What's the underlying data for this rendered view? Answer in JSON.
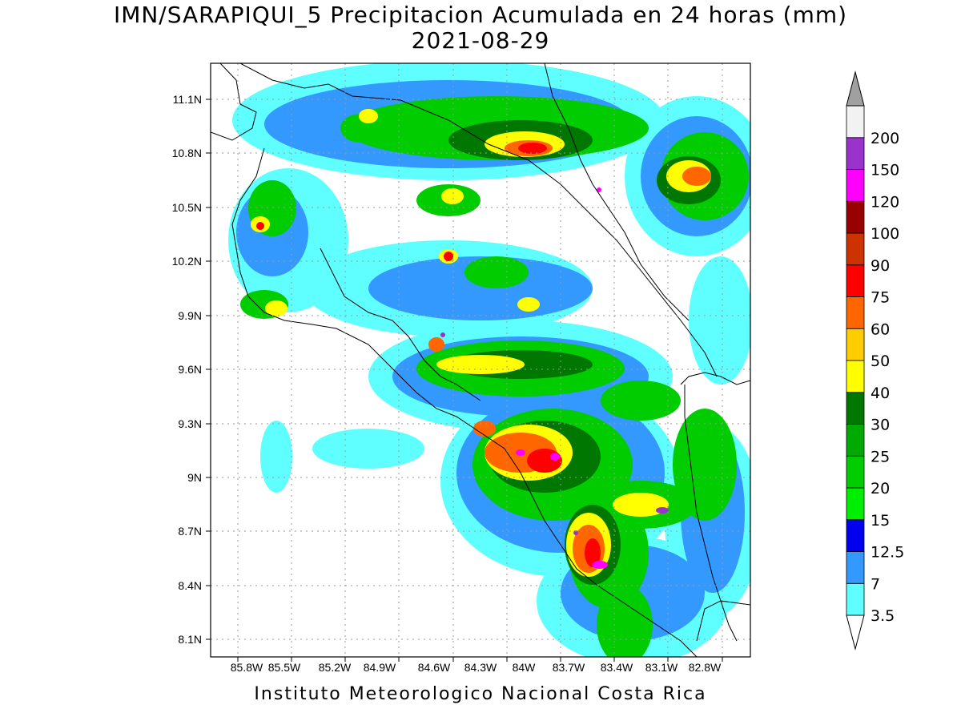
{
  "title_line1": "IMN/SARAPIQUI_5 Precipitacion Acumulada en 24 horas (mm)",
  "title_line2": "2021-08-29",
  "footer": "Instituto Meteorologico Nacional Costa Rica",
  "lat_labels": [
    "11.1N",
    "10.8N",
    "10.5N",
    "10.2N",
    "9.9N",
    "9.6N",
    "9.3N",
    "9N",
    "8.7N",
    "8.4N",
    "8.1N"
  ],
  "lon_labels": [
    "85.8W",
    "85.5W",
    "85.2W",
    "84.9W",
    "84.6W",
    "84.3W",
    "84W",
    "83.7W",
    "83.4W",
    "83.1W",
    "82.8W"
  ],
  "colorbar": {
    "labels": [
      "3.5",
      "7",
      "12.5",
      "15",
      "20",
      "25",
      "30",
      "40",
      "50",
      "60",
      "75",
      "90",
      "100",
      "120",
      "150",
      "200"
    ],
    "colors": [
      "#5fffff",
      "#3399ff",
      "#0000ee",
      "#00ee00",
      "#00cc00",
      "#00aa00",
      "#007700",
      "#ffff00",
      "#ffcc00",
      "#ff6600",
      "#ff0000",
      "#cc3300",
      "#990000",
      "#ff00ff",
      "#9933cc",
      "#f2f2f2",
      "#a0a0a0"
    ]
  }
}
